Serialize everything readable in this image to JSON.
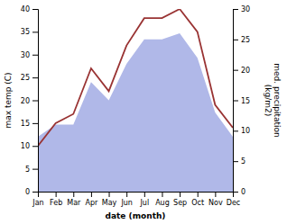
{
  "chart_data": {
    "type": "line",
    "categories": [
      "Jan",
      "Feb",
      "Mar",
      "Apr",
      "May",
      "Jun",
      "Jul",
      "Aug",
      "Sep",
      "Oct",
      "Nov",
      "Dec"
    ],
    "series": [
      {
        "type": "area",
        "axis": "y2",
        "color": "#b0b8e8",
        "values": [
          9,
          11,
          11,
          18,
          15,
          21,
          25,
          25,
          26,
          22,
          13,
          9
        ]
      },
      {
        "type": "line",
        "color": "#993333",
        "values": [
          10,
          15,
          17,
          27,
          22,
          32,
          38,
          38,
          40,
          35,
          19,
          14
        ]
      }
    ],
    "xlabel": "date (month)",
    "ylabel": "max temp (C)",
    "y2label": "med. precipitation\n(kg/m2)",
    "ylim": [
      0,
      40
    ],
    "yticks": [
      0,
      5,
      10,
      15,
      20,
      25,
      30,
      35,
      40
    ],
    "y2lim": [
      0,
      30
    ],
    "y2ticks": [
      0,
      5,
      10,
      15,
      20,
      25,
      30
    ],
    "grid": false
  }
}
